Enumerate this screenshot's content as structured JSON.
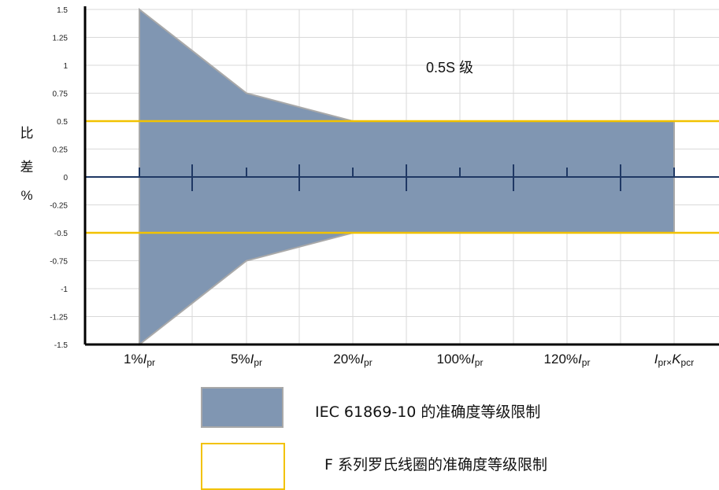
{
  "chart_data": {
    "type": "area",
    "annotation": "0.5S 级",
    "ylabel_chars": [
      "比",
      "差",
      "%"
    ],
    "y_ticks": [
      "1.5",
      "1.25",
      "1",
      "0.75",
      "0.5",
      "0.25",
      "0",
      "-0.25",
      "-0.5",
      "-0.75",
      "-1",
      "-1.25",
      "-1.5"
    ],
    "ylim": [
      -1.5,
      1.5
    ],
    "x_categories": [
      {
        "pre": "1%",
        "italic": "I",
        "sub": "pr",
        "post": ""
      },
      {
        "pre": "5%",
        "italic": "I",
        "sub": "pr",
        "post": ""
      },
      {
        "pre": "20%",
        "italic": "I",
        "sub": "pr",
        "post": ""
      },
      {
        "pre": "100%",
        "italic": "I",
        "sub": "pr",
        "post": ""
      },
      {
        "pre": "120%",
        "italic": "I",
        "sub": "pr",
        "post": ""
      },
      {
        "pre": "",
        "italic": "I",
        "sub": "pr×",
        "post": "K",
        "sub2": "pcr"
      }
    ],
    "iec_limit": {
      "name": "IEC 61869-10 的准确度等级限制",
      "color": "#8096b2",
      "x": [
        "1%Ipr",
        "5%Ipr",
        "20%Ipr",
        "100%Ipr",
        "120%Ipr",
        "Ipr×Kpcr"
      ],
      "upper": [
        1.5,
        0.75,
        0.5,
        0.5,
        0.5,
        0.5
      ],
      "lower": [
        -1.5,
        -0.75,
        -0.5,
        -0.5,
        -0.5,
        -0.5
      ]
    },
    "f_series_limit": {
      "name": "F 系列罗氏线圈的准确度等级限制",
      "color": "#f2c200",
      "upper": 0.5,
      "lower": -0.5
    },
    "grid": true,
    "legend_position": "bottom"
  }
}
